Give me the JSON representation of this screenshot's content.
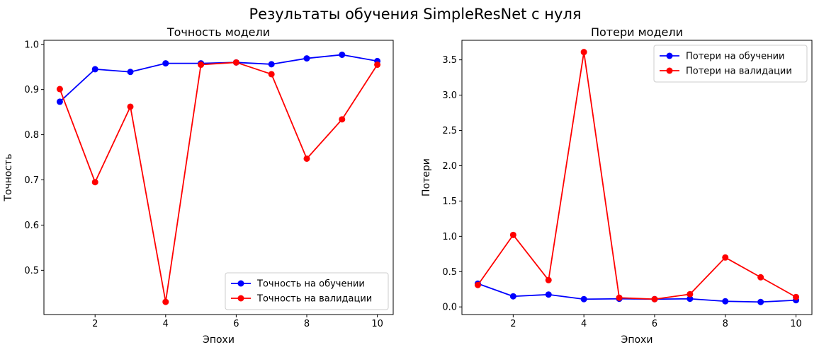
{
  "figure": {
    "suptitle": "Результаты обучения SimpleResNet с нуля"
  },
  "chart_data": [
    {
      "type": "line",
      "title": "Точность модели",
      "xlabel": "Эпохи",
      "ylabel": "Точность",
      "x": [
        1,
        2,
        3,
        4,
        5,
        6,
        7,
        8,
        9,
        10
      ],
      "xlim": [
        0.55,
        10.45
      ],
      "ylim": [
        0.402,
        1.009
      ],
      "xticks": [
        2,
        4,
        6,
        8,
        10
      ],
      "yticks": [
        0.5,
        0.6,
        0.7,
        0.8,
        0.9,
        1.0
      ],
      "ytick_labels": [
        "0.5",
        "0.6",
        "0.7",
        "0.8",
        "0.9",
        "1.0"
      ],
      "grid": false,
      "legend_position": "lower-right",
      "series": [
        {
          "name": "Точность на обучении",
          "color": "#0000ff",
          "values": [
            0.873,
            0.945,
            0.939,
            0.958,
            0.958,
            0.96,
            0.956,
            0.969,
            0.977,
            0.963
          ]
        },
        {
          "name": "Точность на валидации",
          "color": "#ff0000",
          "values": [
            0.901,
            0.695,
            0.862,
            0.43,
            0.955,
            0.96,
            0.934,
            0.747,
            0.834,
            0.955
          ]
        }
      ]
    },
    {
      "type": "line",
      "title": "Потери модели",
      "xlabel": "Эпохи",
      "ylabel": "Потери",
      "x": [
        1,
        2,
        3,
        4,
        5,
        6,
        7,
        8,
        9,
        10
      ],
      "xlim": [
        0.55,
        10.45
      ],
      "ylim": [
        -0.108,
        3.777
      ],
      "xticks": [
        2,
        4,
        6,
        8,
        10
      ],
      "yticks": [
        0.0,
        0.5,
        1.0,
        1.5,
        2.0,
        2.5,
        3.0,
        3.5
      ],
      "ytick_labels": [
        "0.0",
        "0.5",
        "1.0",
        "1.5",
        "2.0",
        "2.5",
        "3.0",
        "3.5"
      ],
      "grid": false,
      "legend_position": "upper-right",
      "series": [
        {
          "name": "Потери на обучении",
          "color": "#0000ff",
          "values": [
            0.33,
            0.15,
            0.175,
            0.11,
            0.115,
            0.11,
            0.115,
            0.08,
            0.07,
            0.095
          ]
        },
        {
          "name": "Потери на валидации",
          "color": "#ff0000",
          "values": [
            0.31,
            1.02,
            0.38,
            3.61,
            0.13,
            0.11,
            0.18,
            0.7,
            0.42,
            0.14
          ]
        }
      ]
    }
  ]
}
